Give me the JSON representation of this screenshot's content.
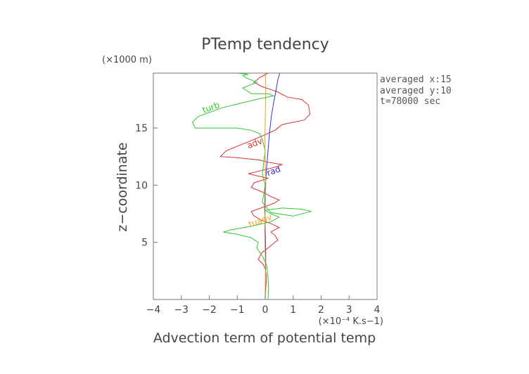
{
  "chart_data": {
    "type": "line",
    "title": "PTemp tendency",
    "xlabel": "Advection term of potential temp",
    "ylabel": "z−coordinate",
    "x_unit": "(×10⁻⁴ K.s−1)",
    "y_unit": "(×1000 m)",
    "xlim": [
      -4,
      4
    ],
    "ylim": [
      0,
      19.8
    ],
    "x_ticks": [
      -4,
      -3,
      -2,
      -1,
      0,
      1,
      2,
      3,
      4
    ],
    "x_tick_labels": [
      "−4",
      "−3",
      "−2",
      "−1",
      "0",
      "1",
      "2",
      "3",
      "4"
    ],
    "y_ticks": [
      5,
      10,
      15
    ],
    "y_tick_labels": [
      "5",
      "10",
      "15"
    ],
    "grid": false,
    "info_lines": [
      "averaged  x:15",
      "averaged  y:10",
      "t=78000 sec"
    ],
    "series": [
      {
        "name": "adv",
        "color": "#e03030",
        "label": "adv",
        "label_at": [
          -0.6,
          13.2
        ],
        "x": [
          0,
          0.02,
          0.05,
          0.0,
          -0.08,
          -0.25,
          -0.12,
          0.1,
          0.3,
          0.45,
          0.35,
          0.2,
          0.5,
          0.25,
          -0.1,
          -0.4,
          -0.5,
          -0.15,
          0.3,
          0.5,
          0.2,
          -0.1,
          -0.5,
          -0.4,
          0.1,
          -0.6,
          -0.1,
          0.4,
          0.6,
          0.1,
          -0.2,
          -1.0,
          -1.6,
          -1.4,
          -0.8,
          -0.2,
          0.35,
          0.6,
          1.4,
          1.6,
          1.55,
          1.3,
          0.8,
          0.4,
          -0.1,
          -0.4,
          -0.2,
          0.1
        ],
        "y": [
          0,
          1.0,
          2.0,
          2.7,
          3.1,
          3.5,
          4.1,
          4.5,
          4.9,
          5.2,
          5.6,
          5.9,
          6.3,
          6.6,
          6.9,
          7.3,
          7.7,
          8.0,
          8.4,
          8.7,
          9.0,
          9.4,
          9.8,
          10.2,
          10.6,
          11.0,
          11.3,
          11.6,
          11.8,
          12.0,
          12.2,
          12.4,
          12.5,
          13.0,
          13.6,
          14.2,
          14.8,
          15.3,
          15.7,
          16.2,
          17.0,
          17.5,
          17.7,
          18.2,
          18.6,
          19.0,
          19.4,
          19.8
        ]
      },
      {
        "name": "turb",
        "color": "#30c830",
        "label": "turb",
        "label_at": [
          -2.2,
          16.3
        ],
        "x": [
          0.1,
          0.12,
          0.1,
          0.05,
          -0.1,
          -0.3,
          -0.25,
          -0.5,
          -1.0,
          -1.5,
          -1.2,
          -0.5,
          0.2,
          0.5,
          0.2,
          0.0,
          0.6,
          1.3,
          1.65,
          1.0,
          0.2,
          -0.1,
          -0.05,
          0.0,
          -0.05,
          -0.1,
          -0.05,
          0.0,
          -0.1,
          -0.2,
          -0.5,
          -1.0,
          -1.5,
          -2.5,
          -2.6,
          -2.4,
          -1.5,
          -0.3,
          0.3,
          0.1,
          -0.5,
          -0.8,
          -0.3,
          -0.5,
          -0.7,
          -0.8,
          -0.6,
          -1.0
        ],
        "y": [
          0,
          1.0,
          2.0,
          3.0,
          3.8,
          4.5,
          5.0,
          5.4,
          5.7,
          5.9,
          6.1,
          6.4,
          6.8,
          7.2,
          7.5,
          7.8,
          8.0,
          7.9,
          7.7,
          7.3,
          7.6,
          8.5,
          9.2,
          10.0,
          10.5,
          11.0,
          12.0,
          13.0,
          14.0,
          14.5,
          14.8,
          15.0,
          15.0,
          15.0,
          15.5,
          16.0,
          16.8,
          17.5,
          17.8,
          18.0,
          18.0,
          18.5,
          19.0,
          19.2,
          19.4,
          19.6,
          19.7,
          19.8
        ]
      },
      {
        "name": "rad",
        "color": "#3030d8",
        "label": "rad",
        "label_at": [
          0.1,
          10.8
        ],
        "x": [
          0.0,
          0.01,
          0.02,
          0.0,
          -0.02,
          0.0,
          0.02,
          0.05,
          0.1,
          0.15,
          0.22,
          0.3,
          0.38,
          0.45,
          0.52
        ],
        "y": [
          0,
          2,
          4,
          6,
          8,
          9.5,
          10.5,
          11.5,
          13.0,
          14.5,
          16.0,
          17.2,
          18.2,
          19.2,
          19.8
        ]
      },
      {
        "name": "tuadv",
        "color": "#e8a020",
        "label": "tuadv",
        "label_at": [
          -0.55,
          6.3
        ],
        "x": [
          0.0,
          0.01,
          0.0,
          -0.02,
          0.0,
          0.02,
          0.0,
          -0.01,
          0.0,
          0.01,
          0.02,
          0.0
        ],
        "y": [
          0,
          2,
          4,
          6,
          8,
          10,
          12,
          14,
          15.5,
          17,
          18.5,
          19.8
        ]
      }
    ]
  }
}
